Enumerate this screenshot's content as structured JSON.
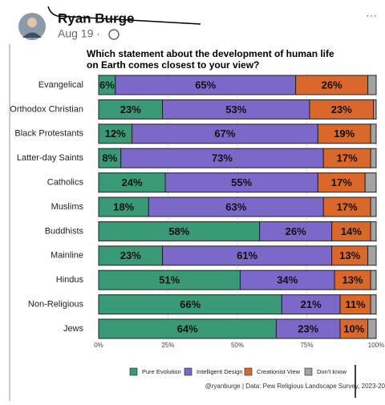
{
  "post": {
    "author": "Ryan Burge",
    "date": "Aug 19 ·",
    "menu": "···"
  },
  "chart_data": {
    "type": "stacked-bar-horizontal",
    "title": [
      "Which statement about the development of human life",
      "on Earth comes closest to your view?"
    ],
    "categories": [
      "Evangelical",
      "Orthodox Christian",
      "Black Protestants",
      "Latter-day Saints",
      "Catholics",
      "Muslims",
      "Buddhists",
      "Mainline",
      "Hindus",
      "Non-Religious",
      "Jews"
    ],
    "series": [
      {
        "name": "Pure Evolution",
        "color": "#3a9a78",
        "values": [
          6,
          23,
          12,
          8,
          24,
          18,
          58,
          23,
          51,
          66,
          64
        ],
        "value_labels": [
          "6%",
          "23%",
          "12%",
          "8%",
          "24%",
          "18%",
          "58%",
          "23%",
          "51%",
          "66%",
          "64%"
        ]
      },
      {
        "name": "Intelligent Design",
        "color": "#7b68c8",
        "values": [
          65,
          53,
          67,
          73,
          55,
          63,
          26,
          61,
          34,
          21,
          23
        ],
        "value_labels": [
          "65%",
          "53%",
          "67%",
          "73%",
          "55%",
          "63%",
          "26%",
          "61%",
          "34%",
          "21%",
          "23%"
        ]
      },
      {
        "name": "Creationist View",
        "color": "#d9682a",
        "values": [
          26,
          23,
          19,
          17,
          17,
          17,
          14,
          13,
          13,
          11,
          10
        ],
        "value_labels": [
          "26%",
          "23%",
          "19%",
          "17%",
          "17%",
          "17%",
          "14%",
          "13%",
          "13%",
          "11%",
          "10%"
        ]
      },
      {
        "name": "Don't know",
        "color": "#a3a3a3",
        "values": [
          3,
          1,
          2,
          2,
          4,
          2,
          2,
          3,
          2,
          2,
          3
        ]
      }
    ],
    "xlim": [
      0,
      100
    ],
    "xticks": [
      {
        "value": 0,
        "label": "0%"
      },
      {
        "value": 25,
        "label": "25%"
      },
      {
        "value": 50,
        "label": "50%"
      },
      {
        "value": 75,
        "label": "75%"
      },
      {
        "value": 100,
        "label": "100%"
      }
    ],
    "grid": true,
    "source": "@ryanburge | Data: Pew Religious Landscape Survey, 2023-20"
  }
}
